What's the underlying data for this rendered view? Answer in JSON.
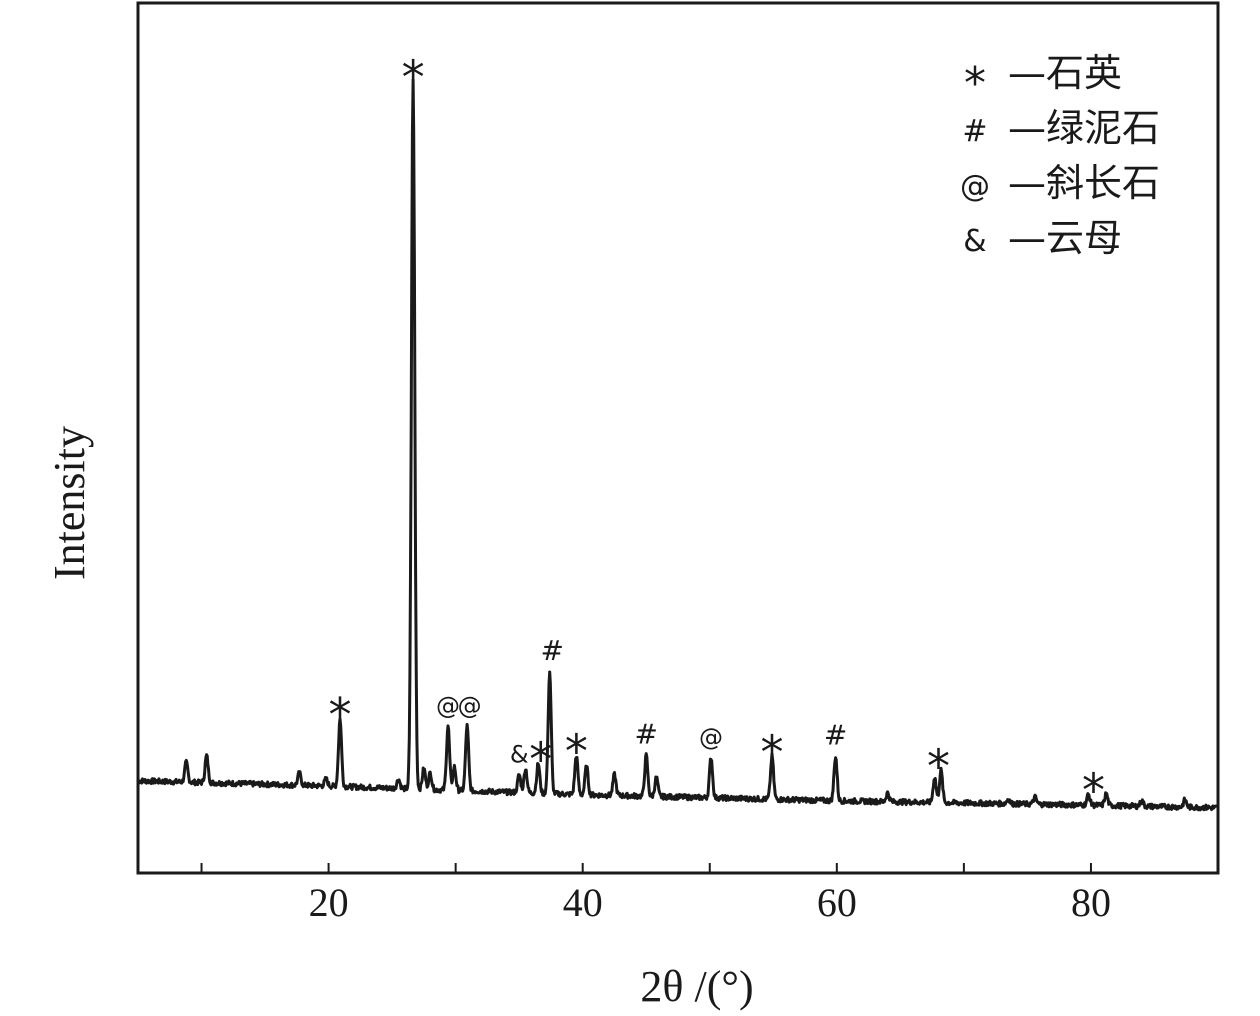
{
  "chart_data": {
    "type": "line",
    "xlabel": "2θ /(°)",
    "ylabel": "Intensity",
    "xlim": [
      5,
      90
    ],
    "ylim": [
      0,
      100
    ],
    "xticks": [
      10,
      20,
      30,
      40,
      50,
      60,
      70,
      80,
      90
    ],
    "xtick_labels": [
      {
        "value": 20,
        "label": "20"
      },
      {
        "value": 40,
        "label": "40"
      },
      {
        "value": 60,
        "label": "60"
      },
      {
        "value": 80,
        "label": "80"
      }
    ],
    "baseline": [
      [
        5,
        10.6
      ],
      [
        20,
        10.0
      ],
      [
        40,
        9.0
      ],
      [
        60,
        8.3
      ],
      [
        80,
        7.8
      ],
      [
        90,
        7.5
      ]
    ],
    "peaks": [
      {
        "x": 8.8,
        "y": 12.7
      },
      {
        "x": 10.4,
        "y": 13.5
      },
      {
        "x": 17.7,
        "y": 11.5
      },
      {
        "x": 19.8,
        "y": 10.8
      },
      {
        "x": 20.9,
        "y": 17.7
      },
      {
        "x": 25.5,
        "y": 10.8
      },
      {
        "x": 26.65,
        "y": 91.0
      },
      {
        "x": 27.5,
        "y": 12.0
      },
      {
        "x": 28.0,
        "y": 11.5
      },
      {
        "x": 29.4,
        "y": 16.9
      },
      {
        "x": 29.9,
        "y": 12.2
      },
      {
        "x": 30.9,
        "y": 16.9
      },
      {
        "x": 35.0,
        "y": 11.3
      },
      {
        "x": 35.5,
        "y": 12.0
      },
      {
        "x": 36.5,
        "y": 12.6
      },
      {
        "x": 37.4,
        "y": 23.1
      },
      {
        "x": 39.5,
        "y": 13.5
      },
      {
        "x": 40.3,
        "y": 12.3
      },
      {
        "x": 42.5,
        "y": 11.3
      },
      {
        "x": 45.0,
        "y": 13.5
      },
      {
        "x": 45.8,
        "y": 11.0
      },
      {
        "x": 50.1,
        "y": 13.3
      },
      {
        "x": 54.9,
        "y": 13.4
      },
      {
        "x": 59.9,
        "y": 13.4
      },
      {
        "x": 64.0,
        "y": 9.2
      },
      {
        "x": 67.7,
        "y": 11.0
      },
      {
        "x": 68.2,
        "y": 11.8
      },
      {
        "x": 73.5,
        "y": 8.5
      },
      {
        "x": 75.6,
        "y": 8.7
      },
      {
        "x": 79.8,
        "y": 9.0
      },
      {
        "x": 81.2,
        "y": 9.1
      },
      {
        "x": 84.0,
        "y": 8.3
      },
      {
        "x": 87.4,
        "y": 8.4
      }
    ],
    "peak_markers": [
      {
        "x": 20.9,
        "y": 17.7,
        "symbol": "*"
      },
      {
        "x": 26.65,
        "y": 91.0,
        "symbol": "*"
      },
      {
        "x": 29.4,
        "y": 16.9,
        "symbol": "@"
      },
      {
        "x": 31.1,
        "y": 16.9,
        "symbol": "@"
      },
      {
        "x": 35.0,
        "y": 11.3,
        "symbol": "&"
      },
      {
        "x": 36.7,
        "y": 12.6,
        "symbol": "*"
      },
      {
        "x": 39.5,
        "y": 13.5,
        "symbol": "*"
      },
      {
        "x": 37.6,
        "y": 23.1,
        "symbol": "#"
      },
      {
        "x": 45.0,
        "y": 13.5,
        "symbol": "#"
      },
      {
        "x": 50.1,
        "y": 13.3,
        "symbol": "@"
      },
      {
        "x": 54.9,
        "y": 13.4,
        "symbol": "*"
      },
      {
        "x": 59.9,
        "y": 13.4,
        "symbol": "#"
      },
      {
        "x": 68.0,
        "y": 11.8,
        "symbol": "*"
      },
      {
        "x": 80.2,
        "y": 9.0,
        "symbol": "*"
      }
    ],
    "legend": [
      {
        "symbol": "*",
        "label": "—石英"
      },
      {
        "symbol": "#",
        "label": "—绿泥石"
      },
      {
        "symbol": "@",
        "label": "—斜长石"
      },
      {
        "symbol": "&",
        "label": "—云母"
      }
    ],
    "legend_position": "top-right",
    "grid": false,
    "line_color": "#1a1a1a"
  }
}
